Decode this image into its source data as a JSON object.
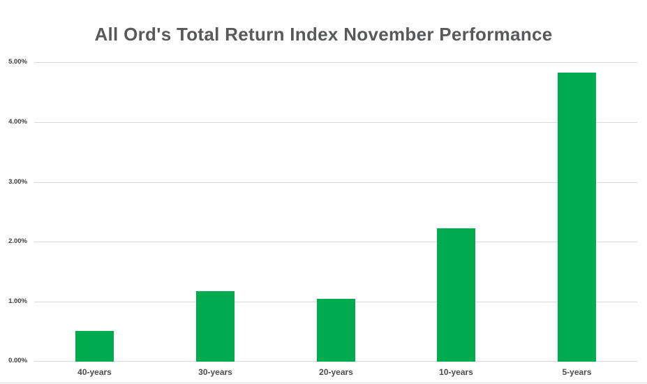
{
  "chart_data": {
    "type": "bar",
    "title": "All Ord's Total Return Index November Performance",
    "categories": [
      "40-years",
      "30-years",
      "20-years",
      "10-years",
      "5-years"
    ],
    "values": [
      0.51,
      1.18,
      1.05,
      2.23,
      4.83
    ],
    "value_unit": "%",
    "xlabel": "",
    "ylabel": "",
    "ylim": [
      0,
      5
    ],
    "yticks": [
      {
        "value": 5,
        "label": "5.00%"
      },
      {
        "value": 4,
        "label": "4.00%"
      },
      {
        "value": 3,
        "label": "3.00%"
      },
      {
        "value": 2,
        "label": "2.00%"
      },
      {
        "value": 1,
        "label": "1.00%"
      },
      {
        "value": 0,
        "label": "0.00%"
      }
    ],
    "grid": "horizontal",
    "legend": "none",
    "colors": {
      "bar": "#00ab50",
      "gridline": "#d9d9d9",
      "title_text": "#58595b",
      "axis_text": "#404040",
      "background": "#ffffff"
    }
  }
}
